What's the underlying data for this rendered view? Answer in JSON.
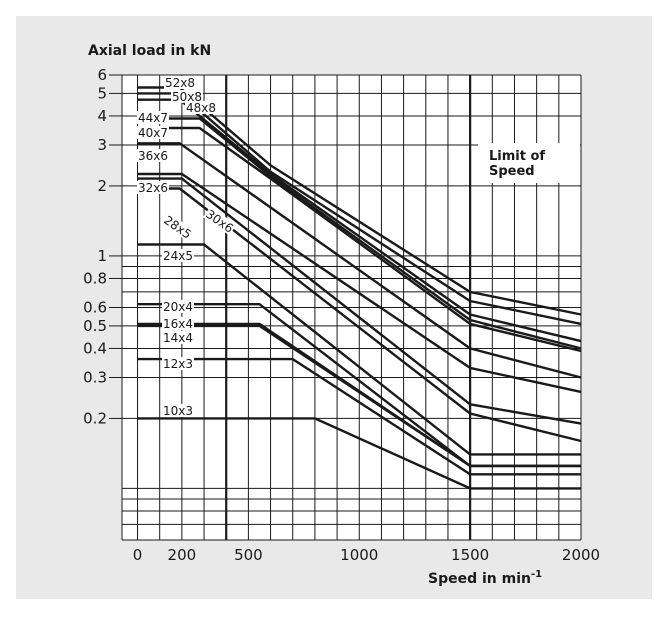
{
  "chart_data": {
    "type": "line",
    "title": "",
    "ylabel": "Axial load in kN",
    "xlabel_text": "Speed in min",
    "xlabel_sup": "-1",
    "x_scale": "linear",
    "y_scale": "log",
    "xlim": [
      -70,
      2000
    ],
    "ylim": [
      0.06,
      6
    ],
    "grid": true,
    "x_ticks": [
      "0",
      "200",
      "500",
      "1000",
      "1500",
      "2000"
    ],
    "y_ticks": [
      "6",
      "5",
      "4",
      "3",
      "2",
      "1",
      "0.8",
      "0.6",
      "0.5",
      "0.4",
      "0.3",
      "0.2"
    ],
    "annotation": [
      "Limit of",
      "Speed"
    ],
    "limit_speed": 1500,
    "series": [
      {
        "name": "52x8",
        "points": [
          [
            0,
            5.3
          ],
          [
            190,
            5.3
          ],
          [
            600,
            2.45
          ],
          [
            1500,
            0.7
          ],
          [
            2000,
            0.56
          ]
        ]
      },
      {
        "name": "50x8",
        "points": [
          [
            0,
            5.0
          ],
          [
            190,
            5.0
          ],
          [
            600,
            2.3
          ],
          [
            1500,
            0.64
          ],
          [
            2000,
            0.51
          ]
        ]
      },
      {
        "name": "48x8",
        "points": [
          [
            0,
            4.7
          ],
          [
            190,
            4.7
          ],
          [
            600,
            2.25
          ],
          [
            1500,
            0.56
          ],
          [
            2000,
            0.43
          ]
        ]
      },
      {
        "name": "44x7",
        "points": [
          [
            0,
            3.9
          ],
          [
            280,
            3.9
          ],
          [
            600,
            2.2
          ],
          [
            1500,
            0.53
          ],
          [
            2000,
            0.4
          ]
        ]
      },
      {
        "name": "40x7",
        "points": [
          [
            0,
            3.55
          ],
          [
            280,
            3.55
          ],
          [
            600,
            2.15
          ],
          [
            1500,
            0.51
          ],
          [
            2000,
            0.39
          ]
        ]
      },
      {
        "name": "36x6",
        "points": [
          [
            0,
            3.05
          ],
          [
            190,
            3.05
          ],
          [
            1500,
            0.4
          ],
          [
            2000,
            0.3
          ]
        ]
      },
      {
        "name": "32x6",
        "points": [
          [
            0,
            2.25
          ],
          [
            200,
            2.25
          ],
          [
            1500,
            0.33
          ],
          [
            2000,
            0.26
          ]
        ]
      },
      {
        "name": "30x6",
        "points": [
          [
            0,
            2.15
          ],
          [
            200,
            2.15
          ],
          [
            1500,
            0.23
          ],
          [
            2000,
            0.19
          ]
        ]
      },
      {
        "name": "28x5",
        "points": [
          [
            0,
            1.95
          ],
          [
            190,
            1.95
          ],
          [
            1500,
            0.21
          ],
          [
            2000,
            0.16
          ]
        ]
      },
      {
        "name": "24x5",
        "points": [
          [
            0,
            1.12
          ],
          [
            300,
            1.12
          ],
          [
            1500,
            0.14
          ],
          [
            2000,
            0.14
          ]
        ]
      },
      {
        "name": "20x4",
        "points": [
          [
            0,
            0.62
          ],
          [
            550,
            0.62
          ],
          [
            1500,
            0.125
          ],
          [
            2000,
            0.125
          ]
        ]
      },
      {
        "name": "16x4",
        "points": [
          [
            0,
            0.51
          ],
          [
            550,
            0.51
          ],
          [
            1500,
            0.125
          ],
          [
            2000,
            0.125
          ]
        ]
      },
      {
        "name": "14x4",
        "points": [
          [
            0,
            0.5
          ],
          [
            550,
            0.5
          ],
          [
            1500,
            0.125
          ],
          [
            2000,
            0.125
          ]
        ]
      },
      {
        "name": "12x3",
        "points": [
          [
            0,
            0.36
          ],
          [
            700,
            0.36
          ],
          [
            1500,
            0.115
          ],
          [
            2000,
            0.115
          ]
        ]
      },
      {
        "name": "10x3",
        "points": [
          [
            0,
            0.2
          ],
          [
            800,
            0.2
          ],
          [
            1500,
            0.1
          ],
          [
            2000,
            0.1
          ]
        ]
      }
    ],
    "colors": {
      "background": "#ffffff",
      "panel": "#e9e9e9",
      "plot": "#ffffff",
      "ink": "#1a1a1a"
    }
  }
}
